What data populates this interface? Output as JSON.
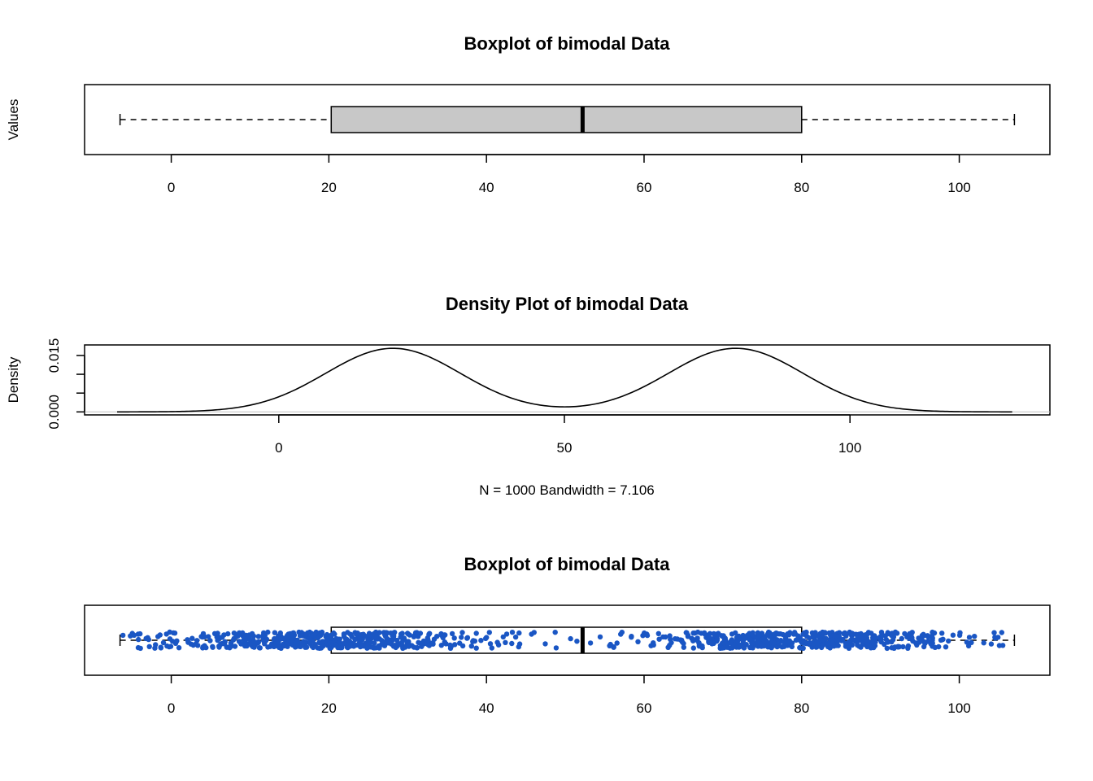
{
  "chart_data": [
    {
      "type": "boxplot",
      "title": "Boxplot of bimodal Data",
      "xlabel": "",
      "ylabel": "Values",
      "orientation": "horizontal",
      "xlim": [
        -11,
        111.5
      ],
      "xticks": [
        "0",
        "20",
        "40",
        "60",
        "80",
        "100"
      ],
      "tick_values": [
        0,
        20,
        40,
        60,
        80,
        100
      ],
      "box": {
        "min": -6.5,
        "q1": 20.3,
        "median": 52.2,
        "q3": 80,
        "max": 107
      },
      "box_fill": "#c8c8c8",
      "grid": false
    },
    {
      "type": "line",
      "title": "Density Plot of bimodal Data",
      "xlabel": "N = 1000   Bandwidth = 7.106",
      "ylabel": "Density",
      "xlim": [
        -34,
        135
      ],
      "ylim": [
        -0.0008,
        0.0178
      ],
      "xticks": [
        "0",
        "50",
        "100"
      ],
      "xtick_values": [
        0,
        50,
        100
      ],
      "yticks": [
        "0.000",
        "",
        "",
        "0.015"
      ],
      "ytick_values": [
        0,
        0.005,
        0.01,
        0.015
      ],
      "x_range": [
        -28.3,
        128.4
      ],
      "modes": [
        {
          "center": 20,
          "sd": 11.8,
          "weight": 0.5
        },
        {
          "center": 80,
          "sd": 11.8,
          "weight": 0.5
        }
      ],
      "peak_values": [
        0.0168,
        0.0166
      ],
      "valley_value": 0.0019,
      "grid": false
    },
    {
      "type": "boxplot",
      "title": "Boxplot of bimodal Data",
      "xlabel": "",
      "ylabel": "",
      "orientation": "horizontal",
      "xlim": [
        -11,
        111.5
      ],
      "xticks": [
        "0",
        "20",
        "40",
        "60",
        "80",
        "100"
      ],
      "tick_values": [
        0,
        20,
        40,
        60,
        80,
        100
      ],
      "box": {
        "min": -6.5,
        "q1": 20.3,
        "median": 52.2,
        "q3": 80,
        "max": 107
      },
      "box_fill": "none",
      "jitter_points": {
        "count": 1000,
        "color": "#1a56c4",
        "clusters": [
          {
            "center": 20,
            "sd": 11
          },
          {
            "center": 80,
            "sd": 11
          }
        ]
      },
      "grid": false
    }
  ]
}
